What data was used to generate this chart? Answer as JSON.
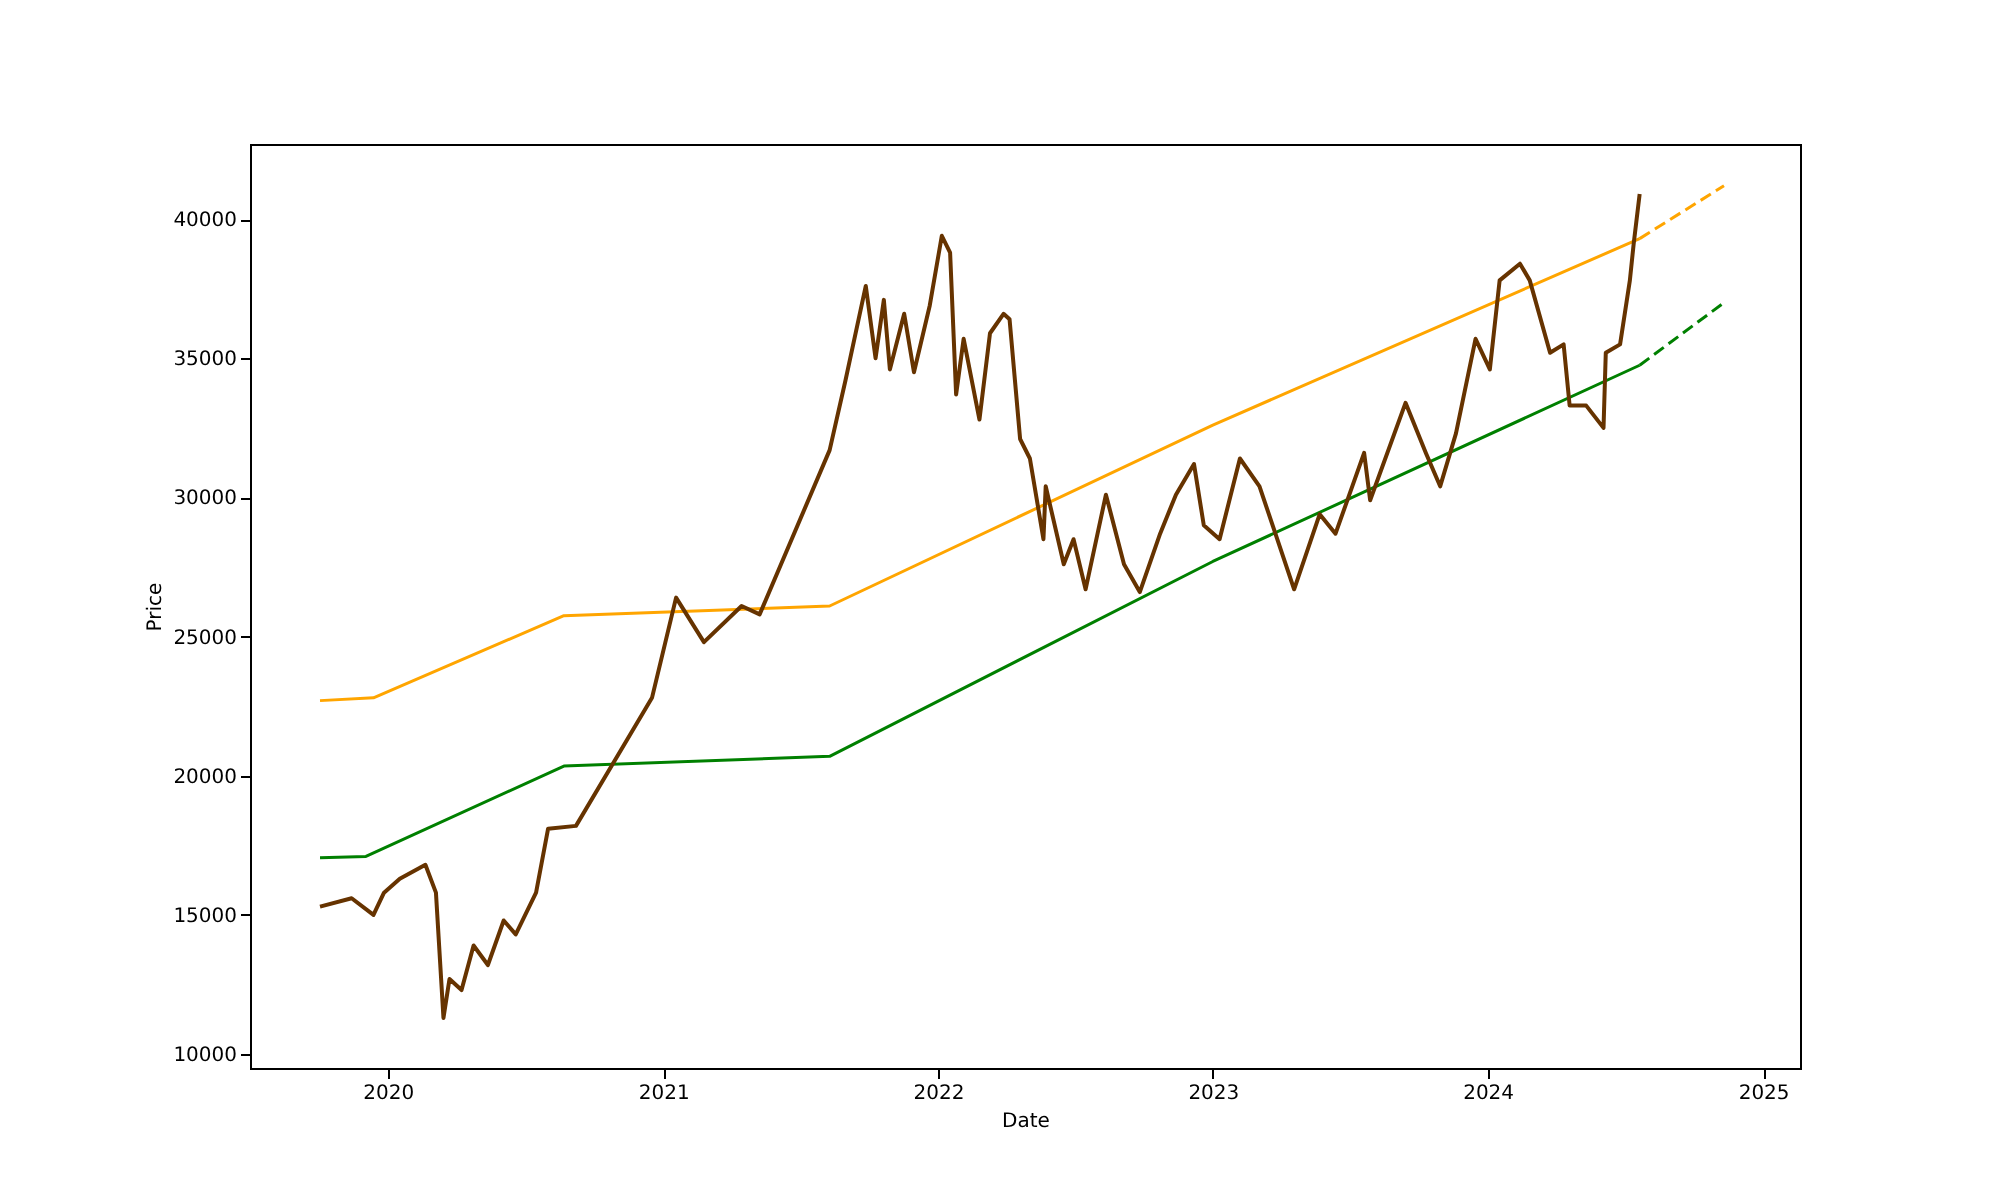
{
  "chart_data": {
    "type": "line",
    "xlabel": "Date",
    "ylabel": "Price",
    "xlim": [
      "2019-07-02",
      "2025-02-19"
    ],
    "ylim": [
      9500,
      42700
    ],
    "xticks": [
      {
        "value": "2020-01-01",
        "label": "2020"
      },
      {
        "value": "2021-01-01",
        "label": "2021"
      },
      {
        "value": "2022-01-01",
        "label": "2022"
      },
      {
        "value": "2023-01-01",
        "label": "2023"
      },
      {
        "value": "2024-01-01",
        "label": "2024"
      },
      {
        "value": "2025-01-01",
        "label": "2025"
      }
    ],
    "yticks": [
      10000,
      15000,
      20000,
      25000,
      30000,
      35000,
      40000
    ],
    "grid": false,
    "marker": "none",
    "series": [
      {
        "color": "#ffa500",
        "line_style": "solid",
        "x": [
          "2019-10-03",
          "2019-12-13",
          "2020-08-22",
          "2021-08-10",
          "2023-01-01",
          "2024-07-21"
        ],
        "values": [
          22700,
          22800,
          25750,
          26100,
          32600,
          39300
        ]
      },
      {
        "color": "#ffa500",
        "line_style": "dashed",
        "x": [
          "2024-07-21",
          "2024-11-10"
        ],
        "values": [
          39300,
          41200
        ]
      },
      {
        "color": "#008000",
        "line_style": "solid",
        "x": [
          "2019-10-03",
          "2019-12-03",
          "2020-08-22",
          "2021-08-10",
          "2023-01-01",
          "2024-07-21"
        ],
        "values": [
          17050,
          17100,
          20350,
          20700,
          27700,
          34750
        ]
      },
      {
        "color": "#008000",
        "line_style": "dashed",
        "x": [
          "2024-07-21",
          "2024-11-10"
        ],
        "values": [
          34750,
          37000
        ]
      },
      {
        "color": "#663300",
        "line_style": "solid",
        "x": [
          "2019-10-03",
          "2019-11-14",
          "2019-12-13",
          "2019-12-27",
          "2020-01-17",
          "2020-02-20",
          "2020-03-05",
          "2020-03-15",
          "2020-03-23",
          "2020-04-08",
          "2020-04-24",
          "2020-05-13",
          "2020-06-03",
          "2020-06-19",
          "2020-07-16",
          "2020-08-01",
          "2020-09-07",
          "2020-12-17",
          "2021-01-18",
          "2021-02-24",
          "2021-04-15",
          "2021-05-09",
          "2021-08-10",
          "2021-08-31",
          "2021-09-27",
          "2021-10-10",
          "2021-10-21",
          "2021-10-29",
          "2021-11-17",
          "2021-11-30",
          "2021-12-21",
          "2022-01-06",
          "2022-01-17",
          "2022-01-25",
          "2022-02-04",
          "2022-02-25",
          "2022-03-11",
          "2022-03-29",
          "2022-04-06",
          "2022-04-20",
          "2022-05-03",
          "2022-05-21",
          "2022-05-24",
          "2022-06-17",
          "2022-06-30",
          "2022-07-16",
          "2022-08-12",
          "2022-09-05",
          "2022-09-26",
          "2022-10-23",
          "2022-11-13",
          "2022-12-07",
          "2022-12-20",
          "2023-01-10",
          "2023-02-06",
          "2023-03-04",
          "2023-04-19",
          "2023-05-23",
          "2023-06-13",
          "2023-07-21",
          "2023-07-29",
          "2023-09-14",
          "2023-10-11",
          "2023-10-30",
          "2023-11-20",
          "2023-12-16",
          "2024-01-04",
          "2024-01-17",
          "2024-02-13",
          "2024-02-26",
          "2024-03-24",
          "2024-04-11",
          "2024-04-19",
          "2024-05-11",
          "2024-06-03",
          "2024-06-06",
          "2024-06-25",
          "2024-07-08",
          "2024-07-13",
          "2024-07-21"
        ],
        "values": [
          15300,
          15600,
          15000,
          15800,
          16300,
          16800,
          15800,
          11300,
          12700,
          12300,
          13900,
          13200,
          14800,
          14300,
          15800,
          18100,
          18200,
          22800,
          26400,
          24800,
          26100,
          25800,
          31700,
          34200,
          37600,
          35000,
          37100,
          34600,
          36600,
          34500,
          36900,
          39400,
          38800,
          33700,
          35700,
          32800,
          35900,
          36600,
          36400,
          32100,
          31400,
          28500,
          30400,
          27600,
          28500,
          26700,
          30100,
          27600,
          26600,
          28700,
          30100,
          31200,
          29000,
          28500,
          31400,
          30400,
          26700,
          29400,
          28700,
          31600,
          29900,
          33400,
          31600,
          30400,
          32300,
          35700,
          34600,
          37800,
          38400,
          37800,
          35200,
          35500,
          33300,
          33300,
          32500,
          35200,
          35500,
          37800,
          39100,
          40900
        ]
      }
    ]
  }
}
